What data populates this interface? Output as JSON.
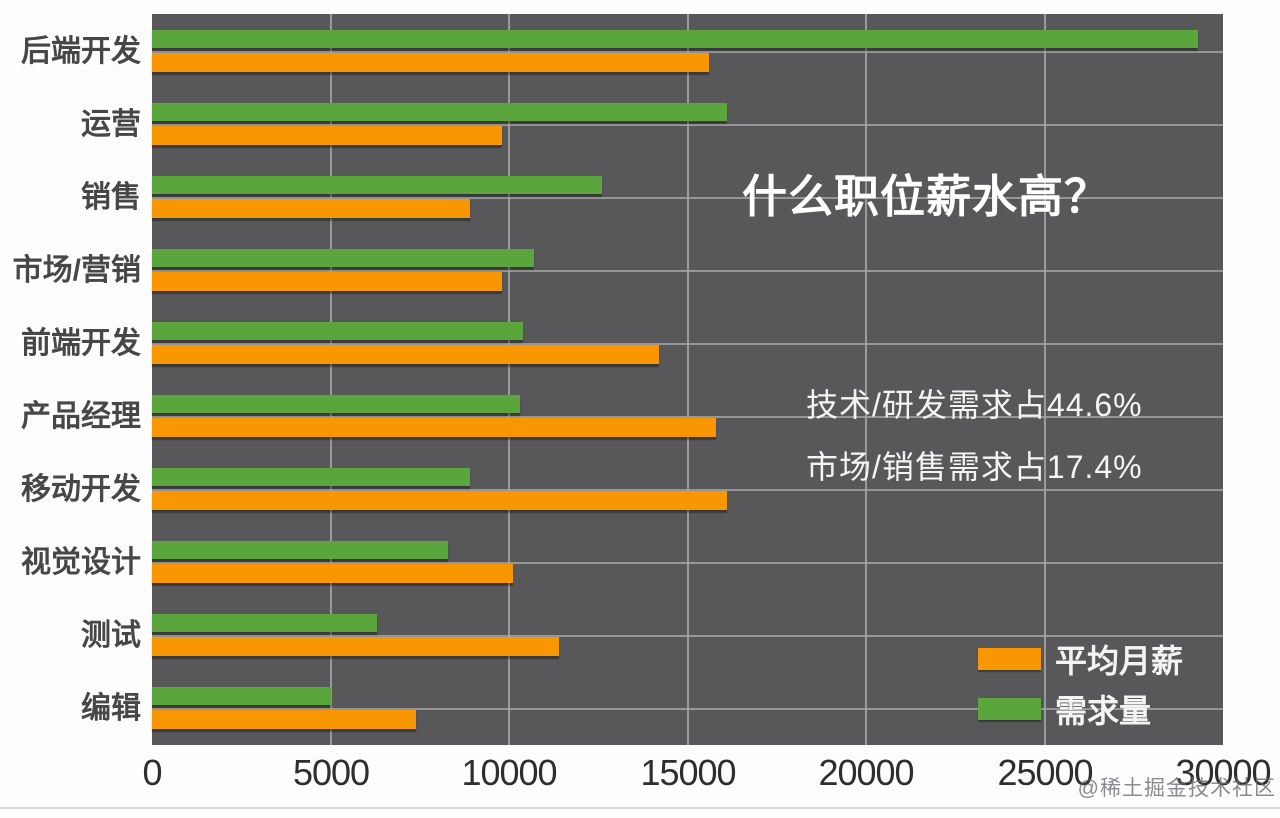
{
  "watermark": "@稀土掘金技术社区",
  "chart_data": {
    "type": "bar",
    "orientation": "horizontal",
    "title": "什么职位薪水高？",
    "xlabel": "",
    "ylabel": "",
    "xlim": [
      0,
      30000
    ],
    "x_ticks": [
      "0",
      "5000",
      "10000",
      "15000",
      "20000",
      "25000",
      "30000"
    ],
    "grid": true,
    "plot_bg_color": "#58585a",
    "grid_color": "#a6a6a6",
    "categories": [
      "后端开发",
      "运营",
      "销售",
      "市场/营销",
      "前端开发",
      "产品经理",
      "移动开发",
      "视觉设计",
      "测试",
      "编辑"
    ],
    "series": [
      {
        "name": "需求量",
        "color": "#5aa53c",
        "values": [
          29300,
          16100,
          12600,
          10700,
          10400,
          10300,
          8900,
          8300,
          6300,
          5000
        ]
      },
      {
        "name": "平均月薪",
        "color": "#f89702",
        "values": [
          15600,
          9800,
          8900,
          9800,
          14200,
          15800,
          16100,
          10100,
          11400,
          7400
        ]
      }
    ],
    "annotations": [
      "技术/研发需求占44.6%",
      "市场/销售需求占17.4%"
    ],
    "legend": [
      {
        "label": "平均月薪",
        "color": "#f89702"
      },
      {
        "label": "需求量",
        "color": "#5aa53c"
      }
    ],
    "legend_position": "lower right"
  }
}
